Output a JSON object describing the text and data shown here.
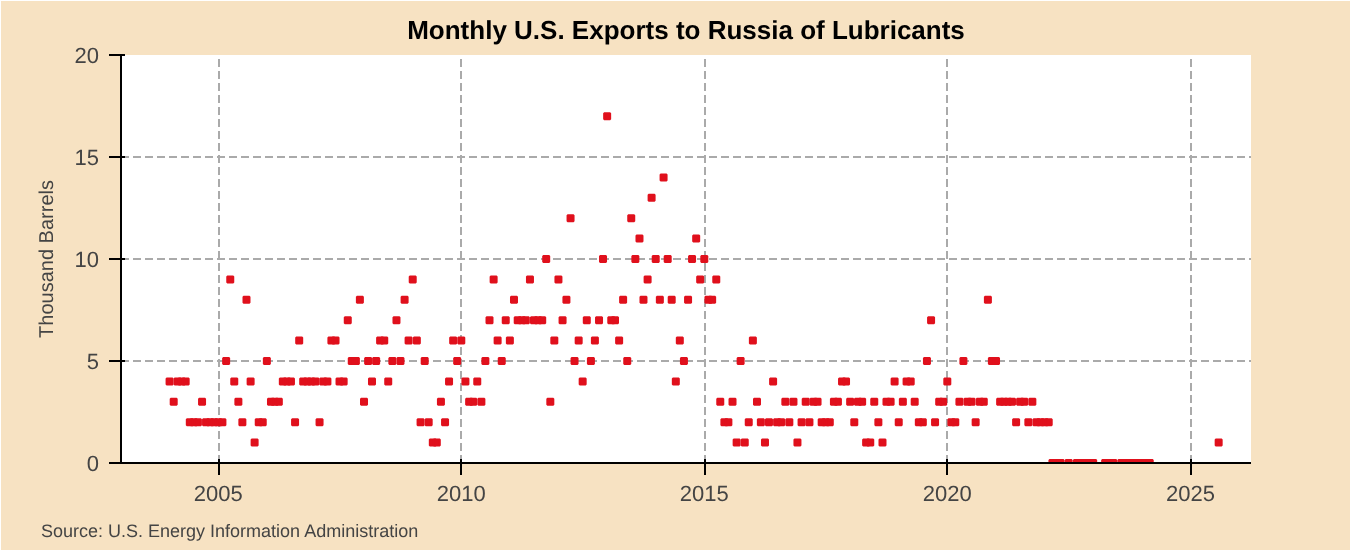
{
  "chart_data": {
    "type": "scatter",
    "title": "Monthly U.S. Exports to Russia of Lubricants",
    "ylabel": "Thousand Barrels",
    "annotations": [
      "Source: U.S. Energy Information Administration"
    ],
    "marker": "square",
    "grid": true,
    "color": "#e0101c",
    "x": [
      "2004-01",
      "2004-02",
      "2004-03",
      "2004-04",
      "2004-05",
      "2004-06",
      "2004-07",
      "2004-08",
      "2004-09",
      "2004-10",
      "2004-11",
      "2004-12",
      "2005-01",
      "2005-02",
      "2005-03",
      "2005-04",
      "2005-05",
      "2005-06",
      "2005-07",
      "2005-08",
      "2005-09",
      "2005-10",
      "2005-11",
      "2005-12",
      "2006-01",
      "2006-02",
      "2006-03",
      "2006-04",
      "2006-05",
      "2006-06",
      "2006-07",
      "2006-08",
      "2006-09",
      "2006-10",
      "2006-11",
      "2006-12",
      "2007-01",
      "2007-02",
      "2007-03",
      "2007-04",
      "2007-05",
      "2007-06",
      "2007-07",
      "2007-08",
      "2007-09",
      "2007-10",
      "2007-11",
      "2007-12",
      "2008-01",
      "2008-02",
      "2008-03",
      "2008-04",
      "2008-05",
      "2008-06",
      "2008-07",
      "2008-08",
      "2008-09",
      "2008-10",
      "2008-11",
      "2008-12",
      "2009-01",
      "2009-02",
      "2009-03",
      "2009-04",
      "2009-05",
      "2009-06",
      "2009-07",
      "2009-08",
      "2009-09",
      "2009-10",
      "2009-11",
      "2009-12",
      "2010-01",
      "2010-02",
      "2010-03",
      "2010-04",
      "2010-05",
      "2010-06",
      "2010-07",
      "2010-08",
      "2010-09",
      "2010-10",
      "2010-11",
      "2010-12",
      "2011-01",
      "2011-02",
      "2011-03",
      "2011-04",
      "2011-05",
      "2011-06",
      "2011-07",
      "2011-08",
      "2011-09",
      "2011-10",
      "2011-11",
      "2011-12",
      "2012-01",
      "2012-02",
      "2012-03",
      "2012-04",
      "2012-05",
      "2012-06",
      "2012-07",
      "2012-08",
      "2012-09",
      "2012-10",
      "2012-11",
      "2012-12",
      "2013-01",
      "2013-02",
      "2013-03",
      "2013-04",
      "2013-05",
      "2013-06",
      "2013-07",
      "2013-08",
      "2013-09",
      "2013-10",
      "2013-11",
      "2013-12",
      "2014-01",
      "2014-02",
      "2014-03",
      "2014-04",
      "2014-05",
      "2014-06",
      "2014-07",
      "2014-08",
      "2014-09",
      "2014-10",
      "2014-11",
      "2014-12",
      "2015-01",
      "2015-02",
      "2015-03",
      "2015-04",
      "2015-05",
      "2015-06",
      "2015-07",
      "2015-08",
      "2015-09",
      "2015-10",
      "2015-11",
      "2015-12",
      "2016-01",
      "2016-02",
      "2016-03",
      "2016-04",
      "2016-05",
      "2016-06",
      "2016-07",
      "2016-08",
      "2016-09",
      "2016-10",
      "2016-11",
      "2016-12",
      "2017-01",
      "2017-02",
      "2017-03",
      "2017-04",
      "2017-05",
      "2017-06",
      "2017-07",
      "2017-08",
      "2017-09",
      "2017-10",
      "2017-11",
      "2017-12",
      "2018-01",
      "2018-02",
      "2018-03",
      "2018-04",
      "2018-05",
      "2018-06",
      "2018-07",
      "2018-08",
      "2018-09",
      "2018-10",
      "2018-11",
      "2018-12",
      "2019-01",
      "2019-02",
      "2019-03",
      "2019-04",
      "2019-05",
      "2019-06",
      "2019-07",
      "2019-08",
      "2019-09",
      "2019-10",
      "2019-11",
      "2019-12",
      "2020-01",
      "2020-02",
      "2020-03",
      "2020-04",
      "2020-05",
      "2020-06",
      "2020-07",
      "2020-08",
      "2020-09",
      "2020-10",
      "2020-11",
      "2020-12",
      "2021-01",
      "2021-02",
      "2021-03",
      "2021-04",
      "2021-05",
      "2021-06",
      "2021-07",
      "2021-08",
      "2021-09",
      "2021-10",
      "2021-11",
      "2021-12",
      "2022-01",
      "2022-02",
      "2022-03",
      "2022-04",
      "2022-05",
      "2022-07",
      "2022-09",
      "2022-10",
      "2022-11",
      "2022-12",
      "2023-01",
      "2023-04",
      "2023-05",
      "2023-06",
      "2023-08",
      "2023-09",
      "2023-10",
      "2023-11",
      "2023-12",
      "2024-01",
      "2024-02",
      "2024-03",
      "2025-08"
    ],
    "values": [
      4,
      3,
      4,
      4,
      4,
      2,
      2,
      2,
      3,
      2,
      2,
      2,
      2,
      2,
      5,
      9,
      4,
      3,
      2,
      8,
      4,
      1,
      2,
      2,
      5,
      3,
      3,
      3,
      4,
      4,
      4,
      2,
      6,
      4,
      4,
      4,
      4,
      2,
      4,
      4,
      6,
      6,
      4,
      4,
      7,
      5,
      5,
      8,
      3,
      5,
      4,
      5,
      6,
      6,
      4,
      5,
      7,
      5,
      8,
      6,
      9,
      6,
      2,
      5,
      2,
      1,
      1,
      3,
      2,
      4,
      6,
      5,
      6,
      4,
      3,
      3,
      4,
      3,
      5,
      7,
      9,
      6,
      5,
      7,
      6,
      8,
      7,
      7,
      7,
      9,
      7,
      7,
      7,
      10,
      3,
      6,
      9,
      7,
      8,
      12,
      5,
      6,
      4,
      7,
      5,
      6,
      7,
      10,
      17,
      7,
      7,
      6,
      8,
      5,
      12,
      10,
      11,
      8,
      9,
      13,
      10,
      8,
      14,
      10,
      8,
      4,
      6,
      5,
      8,
      10,
      11,
      9,
      10,
      8,
      8,
      9,
      3,
      2,
      2,
      3,
      1,
      5,
      1,
      2,
      6,
      3,
      2,
      1,
      2,
      4,
      2,
      2,
      3,
      2,
      3,
      1,
      2,
      3,
      2,
      3,
      3,
      2,
      2,
      2,
      3,
      3,
      4,
      4,
      3,
      2,
      3,
      3,
      1,
      1,
      3,
      2,
      1,
      3,
      3,
      4,
      2,
      3,
      4,
      4,
      3,
      2,
      2,
      5,
      7,
      2,
      3,
      3,
      4,
      2,
      2,
      3,
      5,
      3,
      3,
      2,
      3,
      3,
      8,
      5,
      5,
      3,
      3,
      3,
      3,
      2,
      3,
      3,
      2,
      3,
      2,
      2,
      2,
      2,
      0,
      0,
      0,
      0,
      0,
      0,
      0,
      0,
      0,
      0,
      0,
      0,
      0,
      0,
      0,
      0,
      0,
      0,
      0,
      0,
      1
    ],
    "xlim": [
      "2003-01",
      "2026-04"
    ],
    "xticks": [
      "2005",
      "2010",
      "2015",
      "2020",
      "2025"
    ],
    "ylim": [
      0,
      20
    ],
    "yticks": [
      0,
      5,
      10,
      15,
      20
    ]
  }
}
